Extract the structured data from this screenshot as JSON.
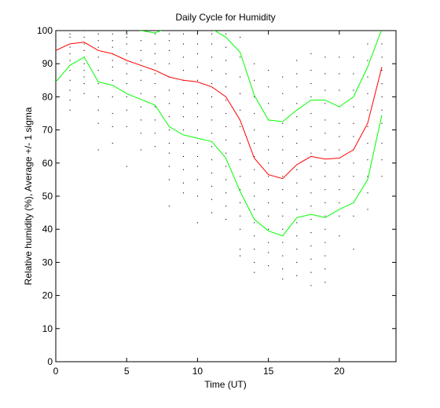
{
  "chart_data": {
    "type": "line",
    "title": "Daily Cycle for Humidity",
    "xlabel": "Time (UT)",
    "ylabel": "Relative humidity (%), Average +/- 1 sigma",
    "xlim": [
      0,
      24
    ],
    "ylim": [
      0,
      100
    ],
    "xticks": [
      0,
      5,
      10,
      15,
      20
    ],
    "yticks": [
      0,
      10,
      20,
      30,
      40,
      50,
      60,
      70,
      80,
      90,
      100
    ],
    "grid": false,
    "series": [
      {
        "role": "average",
        "color": "#ff0000",
        "x": [
          0,
          1,
          2,
          3,
          4,
          5,
          6,
          7,
          8,
          9,
          10,
          11,
          12,
          13,
          14,
          15,
          16,
          17,
          18,
          19,
          20,
          21,
          22,
          23
        ],
        "y": [
          94,
          96,
          96.5,
          94,
          93,
          91,
          89.5,
          88,
          86,
          85,
          84.5,
          83,
          80,
          73,
          61.5,
          56.5,
          55.3,
          59.5,
          62,
          61.2,
          61.5,
          64,
          72,
          89
        ]
      },
      {
        "role": "average + 1 sigma",
        "color": "#00ff00",
        "x": [
          0,
          1,
          2,
          3,
          4,
          5,
          6,
          7,
          8,
          9,
          10,
          11,
          12,
          13,
          14,
          15,
          16,
          17,
          18,
          19,
          20,
          21,
          22,
          23
        ],
        "y": [
          104,
          102,
          101.5,
          101,
          101,
          101,
          100,
          99.3,
          101,
          101,
          101,
          100.5,
          98,
          93.5,
          80.5,
          73,
          72.5,
          76,
          79,
          79,
          77,
          80,
          89,
          100.5
        ]
      },
      {
        "role": "average - 1 sigma",
        "color": "#00ff00",
        "x": [
          0,
          1,
          2,
          3,
          4,
          5,
          6,
          7,
          8,
          9,
          10,
          11,
          12,
          13,
          14,
          15,
          16,
          17,
          18,
          19,
          20,
          21,
          22,
          23
        ],
        "y": [
          84.5,
          89.5,
          92,
          84.5,
          83.5,
          81,
          79.2,
          77.5,
          71,
          68.5,
          67.5,
          66.5,
          61.5,
          51.5,
          43,
          39.5,
          38,
          43.5,
          44.5,
          43.5,
          46,
          48,
          55,
          74.5
        ]
      }
    ],
    "scatter": {
      "color": "#000000",
      "points": [
        [
          0,
          99
        ],
        [
          0,
          97
        ],
        [
          0,
          92
        ],
        [
          0,
          90
        ],
        [
          0,
          87
        ],
        [
          0,
          85
        ],
        [
          0,
          82
        ],
        [
          0,
          80
        ],
        [
          0,
          77
        ],
        [
          1,
          99
        ],
        [
          1,
          98
        ],
        [
          1,
          95
        ],
        [
          1,
          93
        ],
        [
          1,
          91
        ],
        [
          1,
          88
        ],
        [
          1,
          85
        ],
        [
          1,
          82
        ],
        [
          1,
          79
        ],
        [
          1,
          76
        ],
        [
          2,
          100
        ],
        [
          2,
          98
        ],
        [
          2,
          96
        ],
        [
          2,
          94
        ],
        [
          2,
          92
        ],
        [
          2,
          90
        ],
        [
          2,
          88
        ],
        [
          2,
          86
        ],
        [
          2,
          84
        ],
        [
          2,
          81
        ],
        [
          3,
          99
        ],
        [
          3,
          97
        ],
        [
          3,
          95
        ],
        [
          3,
          92
        ],
        [
          3,
          88
        ],
        [
          3,
          84
        ],
        [
          3,
          80
        ],
        [
          3,
          76
        ],
        [
          3,
          72
        ],
        [
          3,
          64
        ],
        [
          4,
          99
        ],
        [
          4,
          97
        ],
        [
          4,
          95
        ],
        [
          4,
          93
        ],
        [
          4,
          91
        ],
        [
          4,
          89
        ],
        [
          4,
          85
        ],
        [
          4,
          80
        ],
        [
          4,
          75
        ],
        [
          4,
          71
        ],
        [
          4,
          66
        ],
        [
          5,
          98
        ],
        [
          5,
          96
        ],
        [
          5,
          93
        ],
        [
          5,
          90
        ],
        [
          5,
          87
        ],
        [
          5,
          84
        ],
        [
          5,
          80
        ],
        [
          5,
          76
        ],
        [
          5,
          71
        ],
        [
          5,
          59
        ],
        [
          6,
          100
        ],
        [
          6,
          97
        ],
        [
          6,
          94
        ],
        [
          6,
          91
        ],
        [
          6,
          88
        ],
        [
          6,
          85
        ],
        [
          6,
          81
        ],
        [
          6,
          77
        ],
        [
          6,
          73
        ],
        [
          6,
          69
        ],
        [
          6,
          64
        ],
        [
          7,
          99
        ],
        [
          7,
          96
        ],
        [
          7,
          93
        ],
        [
          7,
          90
        ],
        [
          7,
          87
        ],
        [
          7,
          84
        ],
        [
          7,
          80
        ],
        [
          7,
          77
        ],
        [
          7,
          73
        ],
        [
          7,
          69
        ],
        [
          7,
          65
        ],
        [
          8,
          99
        ],
        [
          8,
          97
        ],
        [
          8,
          94
        ],
        [
          8,
          90
        ],
        [
          8,
          86
        ],
        [
          8,
          82
        ],
        [
          8,
          78
        ],
        [
          8,
          74
        ],
        [
          8,
          70
        ],
        [
          8,
          66
        ],
        [
          8,
          63
        ],
        [
          8,
          59
        ],
        [
          8,
          55
        ],
        [
          8,
          47
        ],
        [
          9,
          99
        ],
        [
          9,
          96
        ],
        [
          9,
          92
        ],
        [
          9,
          88
        ],
        [
          9,
          85
        ],
        [
          9,
          81
        ],
        [
          9,
          77
        ],
        [
          9,
          74
        ],
        [
          9,
          70
        ],
        [
          9,
          66
        ],
        [
          9,
          62
        ],
        [
          9,
          58
        ],
        [
          9,
          54
        ],
        [
          9,
          51
        ],
        [
          10,
          99
        ],
        [
          10,
          96
        ],
        [
          10,
          93
        ],
        [
          10,
          89
        ],
        [
          10,
          85
        ],
        [
          10,
          81
        ],
        [
          10,
          78
        ],
        [
          10,
          74
        ],
        [
          10,
          70
        ],
        [
          10,
          66
        ],
        [
          10,
          62
        ],
        [
          10,
          59
        ],
        [
          10,
          55
        ],
        [
          10,
          50
        ],
        [
          10,
          42
        ],
        [
          11,
          99
        ],
        [
          11,
          96
        ],
        [
          11,
          92
        ],
        [
          11,
          88
        ],
        [
          11,
          84
        ],
        [
          11,
          80
        ],
        [
          11,
          77
        ],
        [
          11,
          73
        ],
        [
          11,
          69
        ],
        [
          11,
          65
        ],
        [
          11,
          61
        ],
        [
          11,
          57
        ],
        [
          11,
          53
        ],
        [
          11,
          49
        ],
        [
          11,
          45
        ],
        [
          12,
          99
        ],
        [
          12,
          95
        ],
        [
          12,
          91
        ],
        [
          12,
          87
        ],
        [
          12,
          83
        ],
        [
          12,
          79
        ],
        [
          12,
          75
        ],
        [
          12,
          71
        ],
        [
          12,
          67
        ],
        [
          12,
          63
        ],
        [
          12,
          59
        ],
        [
          12,
          55
        ],
        [
          12,
          51
        ],
        [
          12,
          47
        ],
        [
          12,
          43
        ],
        [
          13,
          98
        ],
        [
          13,
          92
        ],
        [
          13,
          86
        ],
        [
          13,
          81
        ],
        [
          13,
          76
        ],
        [
          13,
          71
        ],
        [
          13,
          66
        ],
        [
          13,
          61
        ],
        [
          13,
          56
        ],
        [
          13,
          52
        ],
        [
          13,
          48
        ],
        [
          13,
          44
        ],
        [
          13,
          40
        ],
        [
          13,
          34
        ],
        [
          13,
          32
        ],
        [
          14,
          90
        ],
        [
          14,
          85
        ],
        [
          14,
          80
        ],
        [
          14,
          75
        ],
        [
          14,
          70
        ],
        [
          14,
          66
        ],
        [
          14,
          62
        ],
        [
          14,
          58
        ],
        [
          14,
          54
        ],
        [
          14,
          50
        ],
        [
          14,
          46
        ],
        [
          14,
          42
        ],
        [
          14,
          38
        ],
        [
          14,
          34
        ],
        [
          14,
          30
        ],
        [
          14,
          27
        ],
        [
          15,
          88
        ],
        [
          15,
          83
        ],
        [
          15,
          78
        ],
        [
          15,
          73
        ],
        [
          15,
          68
        ],
        [
          15,
          64
        ],
        [
          15,
          60
        ],
        [
          15,
          56
        ],
        [
          15,
          52
        ],
        [
          15,
          48
        ],
        [
          15,
          44
        ],
        [
          15,
          40
        ],
        [
          15,
          36
        ],
        [
          15,
          33
        ],
        [
          15,
          29
        ],
        [
          16,
          86
        ],
        [
          16,
          81
        ],
        [
          16,
          76
        ],
        [
          16,
          72
        ],
        [
          16,
          68
        ],
        [
          16,
          64
        ],
        [
          16,
          60
        ],
        [
          16,
          56
        ],
        [
          16,
          52
        ],
        [
          16,
          48
        ],
        [
          16,
          44
        ],
        [
          16,
          40
        ],
        [
          16,
          36
        ],
        [
          16,
          32
        ],
        [
          16,
          28
        ],
        [
          16,
          25
        ],
        [
          17,
          91
        ],
        [
          17,
          87
        ],
        [
          17,
          83
        ],
        [
          17,
          78
        ],
        [
          17,
          74
        ],
        [
          17,
          70
        ],
        [
          17,
          66
        ],
        [
          17,
          62
        ],
        [
          17,
          58
        ],
        [
          17,
          54
        ],
        [
          17,
          50
        ],
        [
          17,
          46
        ],
        [
          17,
          42
        ],
        [
          17,
          38
        ],
        [
          17,
          34
        ],
        [
          17,
          30
        ],
        [
          17,
          26
        ],
        [
          18,
          93
        ],
        [
          18,
          88
        ],
        [
          18,
          84
        ],
        [
          18,
          80
        ],
        [
          18,
          75
        ],
        [
          18,
          71
        ],
        [
          18,
          67
        ],
        [
          18,
          63
        ],
        [
          18,
          59
        ],
        [
          18,
          55
        ],
        [
          18,
          51
        ],
        [
          18,
          47
        ],
        [
          18,
          43
        ],
        [
          18,
          39
        ],
        [
          18,
          35
        ],
        [
          18,
          31
        ],
        [
          18,
          27
        ],
        [
          18,
          23
        ],
        [
          19,
          92
        ],
        [
          19,
          87
        ],
        [
          19,
          82
        ],
        [
          19,
          78
        ],
        [
          19,
          73
        ],
        [
          19,
          69
        ],
        [
          19,
          64
        ],
        [
          19,
          60
        ],
        [
          19,
          56
        ],
        [
          19,
          52
        ],
        [
          19,
          48
        ],
        [
          19,
          44
        ],
        [
          19,
          40
        ],
        [
          19,
          36
        ],
        [
          19,
          32
        ],
        [
          19,
          28
        ],
        [
          19,
          24
        ],
        [
          20,
          92
        ],
        [
          20,
          87
        ],
        [
          20,
          82
        ],
        [
          20,
          77
        ],
        [
          20,
          72
        ],
        [
          20,
          68
        ],
        [
          20,
          64
        ],
        [
          20,
          60
        ],
        [
          20,
          56
        ],
        [
          20,
          52
        ],
        [
          20,
          48
        ],
        [
          20,
          44
        ],
        [
          20,
          38
        ],
        [
          21,
          92
        ],
        [
          21,
          87
        ],
        [
          21,
          82
        ],
        [
          21,
          77
        ],
        [
          21,
          72
        ],
        [
          21,
          68
        ],
        [
          21,
          64
        ],
        [
          21,
          60
        ],
        [
          21,
          56
        ],
        [
          21,
          52
        ],
        [
          21,
          48
        ],
        [
          21,
          44
        ],
        [
          21,
          34
        ],
        [
          22,
          96
        ],
        [
          22,
          91
        ],
        [
          22,
          86
        ],
        [
          22,
          81
        ],
        [
          22,
          76
        ],
        [
          22,
          71
        ],
        [
          22,
          66
        ],
        [
          22,
          61
        ],
        [
          22,
          56
        ],
        [
          22,
          51
        ],
        [
          22,
          46
        ],
        [
          23,
          100
        ],
        [
          23,
          96
        ],
        [
          23,
          92
        ],
        [
          23,
          88
        ],
        [
          23,
          84
        ],
        [
          23,
          80
        ],
        [
          23,
          76
        ],
        [
          23,
          72
        ],
        [
          23,
          66
        ],
        [
          23,
          61
        ],
        [
          23,
          56
        ]
      ]
    }
  }
}
